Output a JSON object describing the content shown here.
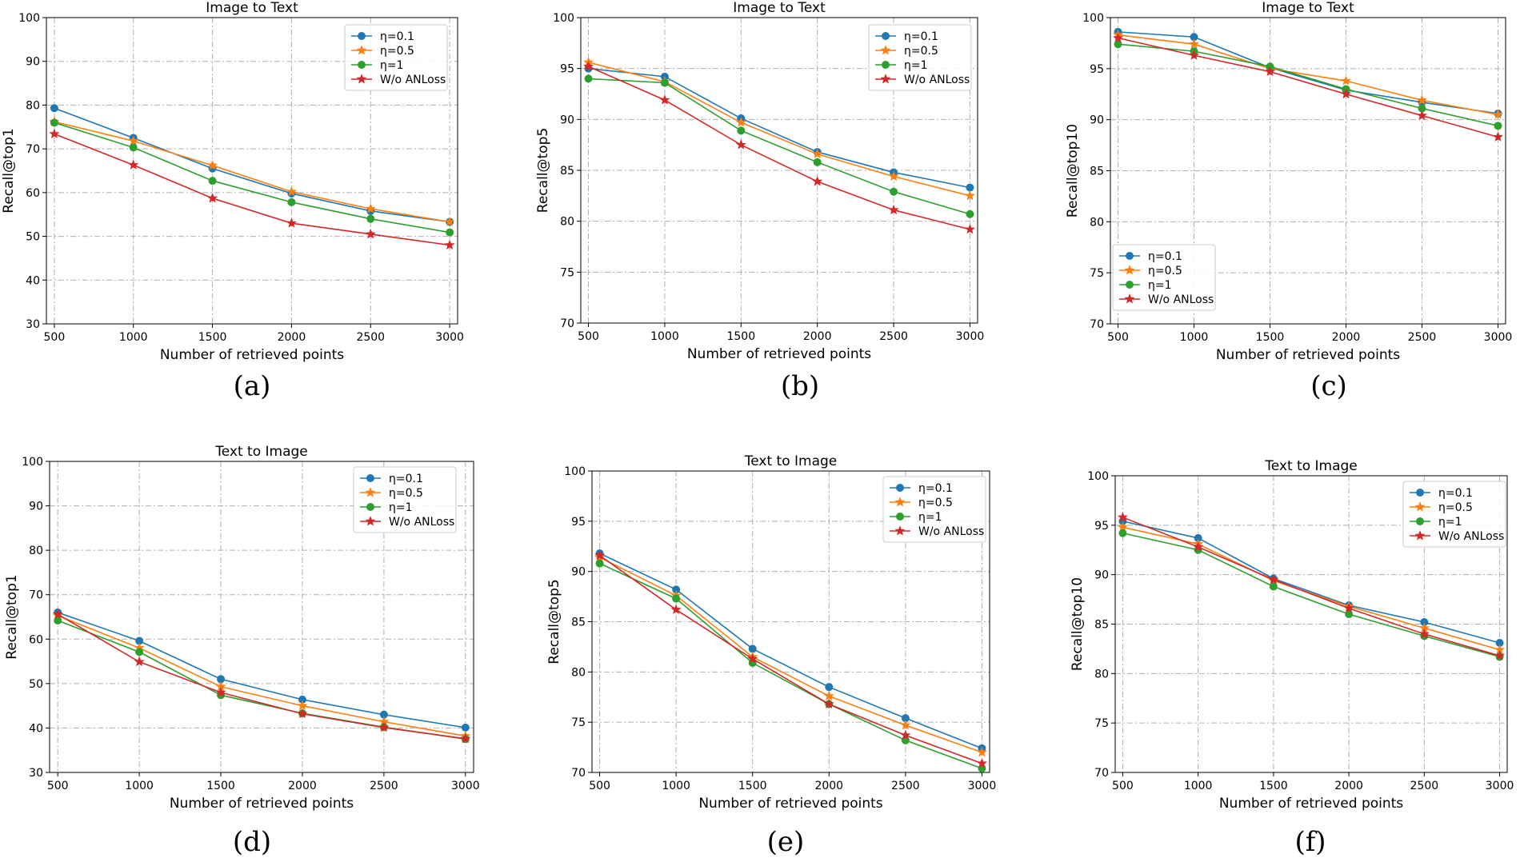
{
  "colors": {
    "eta_0_1": "#1f77b4",
    "eta_0_5": "#ff7f0e",
    "eta_1": "#2ca02c",
    "wo_anloss": "#d62728"
  },
  "chart_data": [
    {
      "type": "line",
      "caption": "(a)",
      "title": "Image to Text",
      "xlabel": "Number of retrieved points",
      "ylabel": "Recall@top1",
      "x": [
        500,
        1000,
        1500,
        2000,
        2500,
        3000
      ],
      "xticks": [
        "500",
        "1000",
        "1500",
        "2000",
        "2500",
        "3000"
      ],
      "ylim": [
        30,
        100
      ],
      "yticks": [
        "30",
        "40",
        "50",
        "60",
        "70",
        "80",
        "90",
        "100"
      ],
      "grid": true,
      "legend_position": "top-right",
      "series": [
        {
          "name": "η=0.1",
          "marker": "circle",
          "values": [
            79.3,
            72.5,
            65.5,
            59.8,
            55.8,
            53.3
          ]
        },
        {
          "name": "η=0.5",
          "marker": "star",
          "values": [
            76.2,
            71.8,
            66.2,
            60.2,
            56.3,
            53.3
          ]
        },
        {
          "name": "η=1",
          "marker": "circle",
          "values": [
            76.0,
            70.3,
            62.7,
            57.8,
            54.0,
            50.9
          ]
        },
        {
          "name": "W/o ANLoss",
          "marker": "star",
          "values": [
            73.4,
            66.3,
            58.7,
            53.0,
            50.5,
            48.0
          ]
        }
      ]
    },
    {
      "type": "line",
      "caption": "(b)",
      "title": "Image to Text",
      "xlabel": "Number of retrieved points",
      "ylabel": "Recall@top5",
      "x": [
        500,
        1000,
        1500,
        2000,
        2500,
        3000
      ],
      "xticks": [
        "500",
        "1000",
        "1500",
        "2000",
        "2500",
        "3000"
      ],
      "ylim": [
        70,
        100
      ],
      "yticks": [
        "70",
        "75",
        "80",
        "85",
        "90",
        "95",
        "100"
      ],
      "grid": true,
      "legend_position": "top-right",
      "series": [
        {
          "name": "η=0.1",
          "marker": "circle",
          "values": [
            95.0,
            94.2,
            90.1,
            86.8,
            84.8,
            83.3
          ]
        },
        {
          "name": "η=0.5",
          "marker": "star",
          "values": [
            95.6,
            93.7,
            89.7,
            86.6,
            84.4,
            82.5
          ]
        },
        {
          "name": "η=1",
          "marker": "circle",
          "values": [
            94.0,
            93.6,
            88.9,
            85.8,
            82.9,
            80.7
          ]
        },
        {
          "name": "W/o ANLoss",
          "marker": "star",
          "values": [
            95.2,
            91.9,
            87.5,
            83.9,
            81.1,
            79.2
          ]
        }
      ]
    },
    {
      "type": "line",
      "caption": "(c)",
      "title": "Image to Text",
      "xlabel": "Number of retrieved points",
      "ylabel": "Recall@top10",
      "x": [
        500,
        1000,
        1500,
        2000,
        2500,
        3000
      ],
      "xticks": [
        "500",
        "1000",
        "1500",
        "2000",
        "2500",
        "3000"
      ],
      "ylim": [
        70,
        100
      ],
      "yticks": [
        "70",
        "75",
        "80",
        "85",
        "90",
        "95",
        "100"
      ],
      "grid": true,
      "legend_position": "bottom-left",
      "series": [
        {
          "name": "η=0.1",
          "marker": "circle",
          "values": [
            98.6,
            98.1,
            95.1,
            92.9,
            91.7,
            90.6
          ]
        },
        {
          "name": "η=0.5",
          "marker": "star",
          "values": [
            98.3,
            97.4,
            95.0,
            93.8,
            91.9,
            90.5
          ]
        },
        {
          "name": "η=1",
          "marker": "circle",
          "values": [
            97.4,
            96.7,
            95.2,
            93.0,
            91.1,
            89.4
          ]
        },
        {
          "name": "W/o ANLoss",
          "marker": "star",
          "values": [
            98.0,
            96.3,
            94.7,
            92.5,
            90.4,
            88.3
          ]
        }
      ]
    },
    {
      "type": "line",
      "caption": "(d)",
      "title": "Text to Image",
      "xlabel": "Number of retrieved points",
      "ylabel": "Recall@top1",
      "x": [
        500,
        1000,
        1500,
        2000,
        2500,
        3000
      ],
      "xticks": [
        "500",
        "1000",
        "1500",
        "2000",
        "2500",
        "3000"
      ],
      "ylim": [
        30,
        100
      ],
      "yticks": [
        "30",
        "40",
        "50",
        "60",
        "70",
        "80",
        "90",
        "100"
      ],
      "grid": true,
      "legend_position": "top-right",
      "series": [
        {
          "name": "η=0.1",
          "marker": "circle",
          "values": [
            66.0,
            59.6,
            51.0,
            46.4,
            43.0,
            40.1
          ]
        },
        {
          "name": "η=0.5",
          "marker": "star",
          "values": [
            65.3,
            58.0,
            49.3,
            45.0,
            41.4,
            38.2
          ]
        },
        {
          "name": "η=1",
          "marker": "circle",
          "values": [
            64.2,
            57.1,
            47.4,
            43.3,
            40.2,
            37.5
          ]
        },
        {
          "name": "W/o ANLoss",
          "marker": "star",
          "values": [
            65.6,
            54.9,
            48.0,
            43.2,
            40.1,
            37.6
          ]
        }
      ]
    },
    {
      "type": "line",
      "caption": "(e)",
      "title": "Text to Image",
      "xlabel": "Number of retrieved points",
      "ylabel": "Recall@top5",
      "x": [
        500,
        1000,
        1500,
        2000,
        2500,
        3000
      ],
      "xticks": [
        "500",
        "1000",
        "1500",
        "2000",
        "2500",
        "3000"
      ],
      "ylim": [
        70,
        100
      ],
      "yticks": [
        "70",
        "75",
        "80",
        "85",
        "90",
        "95",
        "100"
      ],
      "grid": true,
      "legend_position": "top-right",
      "series": [
        {
          "name": "η=0.1",
          "marker": "circle",
          "values": [
            91.8,
            88.2,
            82.3,
            78.5,
            75.4,
            72.4
          ]
        },
        {
          "name": "η=0.5",
          "marker": "star",
          "values": [
            91.4,
            87.6,
            81.5,
            77.6,
            74.7,
            72.0
          ]
        },
        {
          "name": "η=1",
          "marker": "circle",
          "values": [
            90.8,
            87.3,
            80.9,
            76.8,
            73.2,
            70.4
          ]
        },
        {
          "name": "W/o ANLoss",
          "marker": "star",
          "values": [
            91.6,
            86.2,
            81.3,
            76.8,
            73.7,
            70.9
          ]
        }
      ]
    },
    {
      "type": "line",
      "caption": "(f)",
      "title": "Text to Image",
      "xlabel": "Number of retrieved points",
      "ylabel": "Recall@top10",
      "x": [
        500,
        1000,
        1500,
        2000,
        2500,
        3000
      ],
      "xticks": [
        "500",
        "1000",
        "1500",
        "2000",
        "2500",
        "3000"
      ],
      "ylim": [
        70,
        100
      ],
      "yticks": [
        "70",
        "75",
        "80",
        "85",
        "90",
        "95",
        "100"
      ],
      "grid": true,
      "legend_position": "top-right",
      "series": [
        {
          "name": "η=0.1",
          "marker": "circle",
          "values": [
            95.4,
            93.7,
            89.6,
            86.9,
            85.2,
            83.1
          ]
        },
        {
          "name": "η=0.5",
          "marker": "star",
          "values": [
            94.8,
            93.1,
            89.4,
            86.8,
            84.6,
            82.4
          ]
        },
        {
          "name": "η=1",
          "marker": "circle",
          "values": [
            94.2,
            92.5,
            88.8,
            86.0,
            83.8,
            81.7
          ]
        },
        {
          "name": "W/o ANLoss",
          "marker": "star",
          "values": [
            95.8,
            92.8,
            89.5,
            86.6,
            84.0,
            81.8
          ]
        }
      ]
    }
  ]
}
